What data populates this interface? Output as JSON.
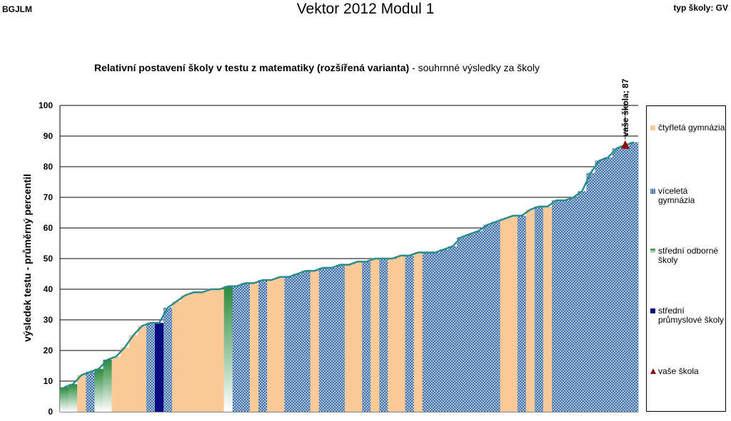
{
  "header": {
    "left": "BGJLM",
    "center": "Vektor 2012 Modul 1",
    "right": "typ školy: GV"
  },
  "chart_data": {
    "type": "bar",
    "title_bold": "Relativní postavení školy v testu z matematiky (rozšířená varianta)",
    "title_rest": " - souhrnné výsledky za školy",
    "xlabel": "",
    "ylabel": "výsledek testu - průměrný percentil",
    "ylim": [
      0,
      100
    ],
    "yticks": [
      "0",
      "10",
      "20",
      "30",
      "40",
      "50",
      "60",
      "70",
      "80",
      "90",
      "100"
    ],
    "grid": true,
    "legend_position": "right",
    "legend": [
      {
        "key": "gym4",
        "label": "čtyřletá gymnázia"
      },
      {
        "key": "vicel",
        "label": "víceletá gymnázia"
      },
      {
        "key": "sos",
        "label": "střední odborné školy"
      },
      {
        "key": "spg",
        "label": "střední průmyslové školy"
      },
      {
        "key": "school",
        "label": "vaše škola"
      }
    ],
    "colors": {
      "gym4": "#fcc999",
      "vicel": "#3d6fa8",
      "sos": "#2b8a3e",
      "spg": "#0a0a80",
      "school": "#8b1010",
      "line": "#2a8c8c",
      "grid": "#000000"
    },
    "values": [
      8,
      9,
      12,
      13,
      14,
      17,
      18,
      21,
      25,
      28,
      29,
      29,
      34,
      36,
      38,
      39,
      39,
      40,
      40,
      41,
      41,
      42,
      42,
      43,
      43,
      44,
      44,
      45,
      46,
      46,
      47,
      47,
      48,
      48,
      49,
      49,
      50,
      50,
      50,
      51,
      51,
      52,
      52,
      52,
      53,
      54,
      57,
      58,
      59,
      61,
      62,
      63,
      64,
      64,
      66,
      67,
      67,
      69,
      69,
      70,
      72,
      78,
      82,
      83,
      86,
      87,
      88
    ],
    "types": [
      "sos",
      "sos",
      "gym4",
      "vicel",
      "sos",
      "sos",
      "gym4",
      "gym4",
      "gym4",
      "gym4",
      "vicel",
      "spg",
      "vicel",
      "gym4",
      "gym4",
      "gym4",
      "gym4",
      "gym4",
      "gym4",
      "sos",
      "vicel",
      "vicel",
      "gym4",
      "vicel",
      "gym4",
      "gym4",
      "vicel",
      "vicel",
      "vicel",
      "gym4",
      "vicel",
      "vicel",
      "vicel",
      "gym4",
      "gym4",
      "vicel",
      "gym4",
      "vicel",
      "gym4",
      "gym4",
      "vicel",
      "gym4",
      "vicel",
      "vicel",
      "vicel",
      "vicel",
      "vicel",
      "vicel",
      "vicel",
      "vicel",
      "vicel",
      "gym4",
      "gym4",
      "vicel",
      "gym4",
      "vicel",
      "gym4",
      "vicel",
      "vicel",
      "vicel",
      "vicel",
      "vicel",
      "vicel",
      "vicel",
      "vicel",
      "vicel",
      "vicel"
    ],
    "school": {
      "label": "vaše škola; 87",
      "value": 87,
      "index": 65
    }
  }
}
